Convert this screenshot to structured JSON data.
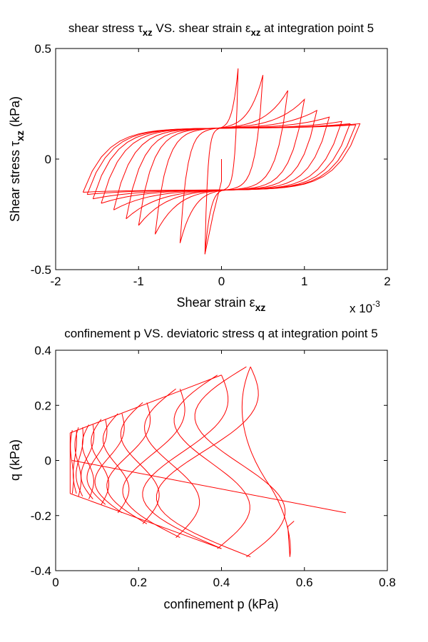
{
  "chart_data": [
    {
      "type": "line",
      "title": "shear stress",
      "title_sym1": "τ",
      "title_sub1": "xz",
      "title_mid": " VS. shear strain ",
      "title_sym2": "ε",
      "title_sub2": "xz",
      "title_end": " at integration point 5",
      "xlabel": "Shear strain ",
      "xlabel_sym": "ε",
      "xlabel_sub": "xz",
      "ylabel": "Shear stress ",
      "ylabel_sym": "τ",
      "ylabel_sub": "xz",
      "ylabel_unit": " (kPa)",
      "x_multiplier": "x 10",
      "x_multiplier_exp": "-3",
      "xlim": [
        -2,
        2
      ],
      "ylim": [
        -0.5,
        0.5
      ],
      "xticks": [
        "-2",
        "-1",
        "0",
        "1",
        "2"
      ],
      "yticks": [
        "-0.5",
        "0",
        "0.5"
      ],
      "color": "#ff0000",
      "grid": false,
      "series": {
        "name": "hysteresis loops",
        "amplitudes": [
          0.2,
          0.5,
          0.8,
          1.0,
          1.15,
          1.3,
          1.45,
          1.55,
          1.62,
          1.67
        ],
        "peak_pos": [
          0.41,
          0.38,
          0.31,
          0.27,
          0.22,
          0.19,
          0.17,
          0.16,
          0.155,
          0.16
        ],
        "peak_neg": [
          -0.43,
          -0.38,
          -0.34,
          -0.3,
          -0.27,
          -0.23,
          -0.2,
          -0.18,
          -0.16,
          -0.15
        ],
        "plateau": 0.14
      }
    },
    {
      "type": "line",
      "title": "confinement p VS. deviatoric stress q at integration point 5",
      "xlabel": "confinement p (kPa)",
      "ylabel": "q (kPa)",
      "xlim": [
        0,
        0.8
      ],
      "ylim": [
        -0.4,
        0.4
      ],
      "xticks": [
        "0",
        "0.2",
        "0.4",
        "0.6",
        "0.8"
      ],
      "yticks": [
        "-0.4",
        "-0.2",
        "0",
        "0.2",
        "0.4"
      ],
      "color": "#ff0000",
      "grid": false,
      "loops": [
        {
          "p": 0.05,
          "q_top": 0.11,
          "q_bot": -0.12
        },
        {
          "p": 0.065,
          "q_top": 0.12,
          "q_bot": -0.13
        },
        {
          "p": 0.09,
          "q_top": 0.13,
          "q_bot": -0.14
        },
        {
          "p": 0.12,
          "q_top": 0.15,
          "q_bot": -0.16
        },
        {
          "p": 0.16,
          "q_top": 0.17,
          "q_bot": -0.19
        },
        {
          "p": 0.22,
          "q_top": 0.21,
          "q_bot": -0.23
        },
        {
          "p": 0.3,
          "q_top": 0.26,
          "q_bot": -0.28
        },
        {
          "p": 0.4,
          "q_top": 0.31,
          "q_bot": -0.32
        },
        {
          "p": 0.47,
          "q_top": 0.34,
          "q_bot": -0.35
        }
      ],
      "line": {
        "x": [
          0.04,
          0.7
        ],
        "y": [
          0.0,
          -0.19
        ]
      }
    }
  ]
}
